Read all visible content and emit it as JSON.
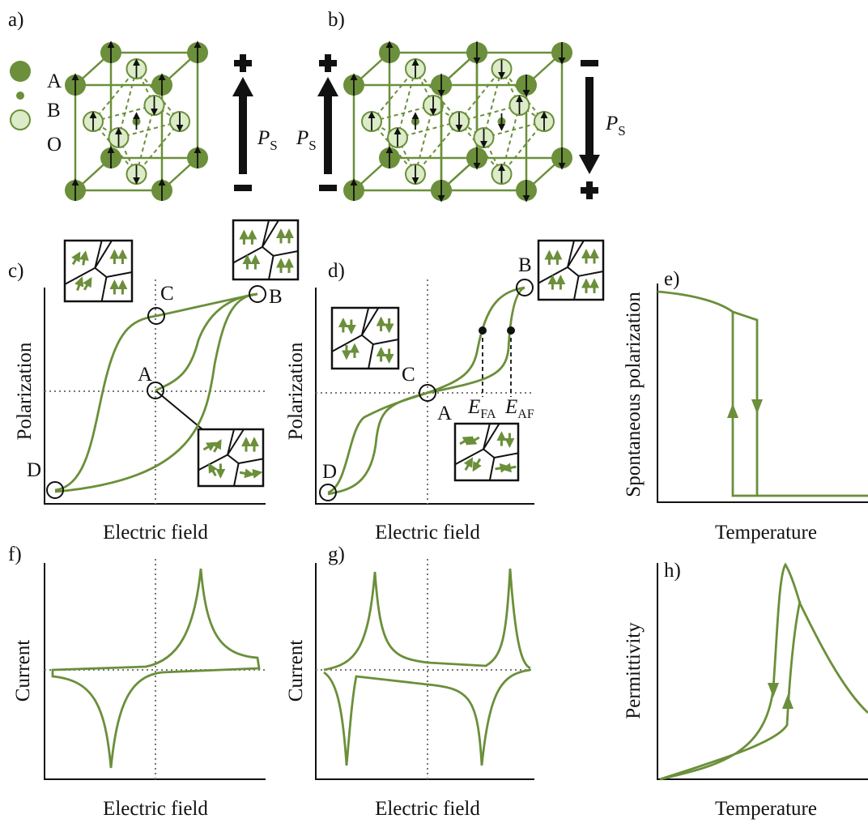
{
  "panels": {
    "a": {
      "label": "a)",
      "legend": [
        "A",
        "B",
        "O"
      ],
      "polarization": {
        "symbol": "P",
        "subscript": "S"
      }
    },
    "b": {
      "label": "b)",
      "polarization": [
        {
          "symbol": "P",
          "subscript": "S"
        },
        {
          "symbol": "P",
          "subscript": "S"
        }
      ]
    },
    "c": {
      "label": "c)",
      "y_label": "Polarization",
      "x_label": "Electric field",
      "points": [
        "A",
        "B",
        "C",
        "D"
      ]
    },
    "d": {
      "label": "d)",
      "y_label": "Polarization",
      "x_label": "Electric field",
      "points": [
        "A",
        "B",
        "C",
        "D"
      ],
      "fields": [
        {
          "symbol": "E",
          "subscript": "FA"
        },
        {
          "symbol": "E",
          "subscript": "AF"
        }
      ]
    },
    "e": {
      "label": "e)",
      "y_label": "Spontaneous polarization",
      "x_label": "Temperature"
    },
    "f": {
      "label": "f)",
      "y_label": "Current",
      "x_label": "Electric field"
    },
    "g": {
      "label": "g)",
      "y_label": "Current",
      "x_label": "Electric field"
    },
    "h": {
      "label": "h)",
      "y_label": "Permittivity",
      "x_label": "Temperature"
    }
  }
}
